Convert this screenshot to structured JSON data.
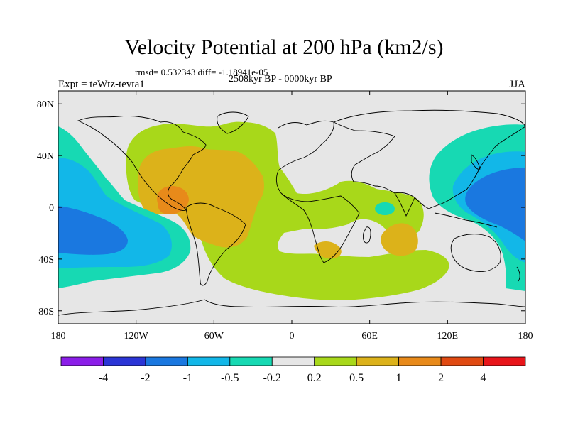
{
  "title": "Velocity Potential at 200 hPa (km2/s)",
  "stats": "rmsd= 0.532343 diff= -1.18941e-05",
  "experiment": "Expt = teWtz-tevta1",
  "period": "2508kyr BP - 0000kyr BP",
  "season": "JJA",
  "map": {
    "lon_range": [
      -180,
      180
    ],
    "lat_range": [
      -90,
      90
    ],
    "x_ticks": [
      {
        "lon": -180,
        "label": "180"
      },
      {
        "lon": -120,
        "label": "120W"
      },
      {
        "lon": -60,
        "label": "60W"
      },
      {
        "lon": 0,
        "label": "0"
      },
      {
        "lon": 60,
        "label": "60E"
      },
      {
        "lon": 120,
        "label": "120E"
      },
      {
        "lon": 180,
        "label": "180"
      }
    ],
    "y_ticks": [
      {
        "lat": 80,
        "label": "80N"
      },
      {
        "lat": 40,
        "label": "40N"
      },
      {
        "lat": 0,
        "label": "0"
      },
      {
        "lat": -40,
        "label": "40S"
      },
      {
        "lat": -80,
        "label": "80S"
      }
    ]
  },
  "colorbar": {
    "colors": [
      "#8b1ee8",
      "#2b35d6",
      "#1a78e0",
      "#12b7e8",
      "#17d9b3",
      "#e6e6e6",
      "#a8d81a",
      "#dcb21a",
      "#e88a1a",
      "#e04a12",
      "#e8151a"
    ],
    "labels": [
      "-4",
      "-2",
      "-1",
      "-0.5",
      "-0.2",
      "0.2",
      "0.5",
      "1",
      "2",
      "4"
    ]
  },
  "field_colors": {
    "background": "#e6e6e6",
    "pos1": "#a8d81a",
    "pos2": "#dcb21a",
    "pos3": "#e88a1a",
    "neg1": "#17d9b3",
    "neg2": "#12b7e8",
    "neg3": "#1a78e0"
  }
}
